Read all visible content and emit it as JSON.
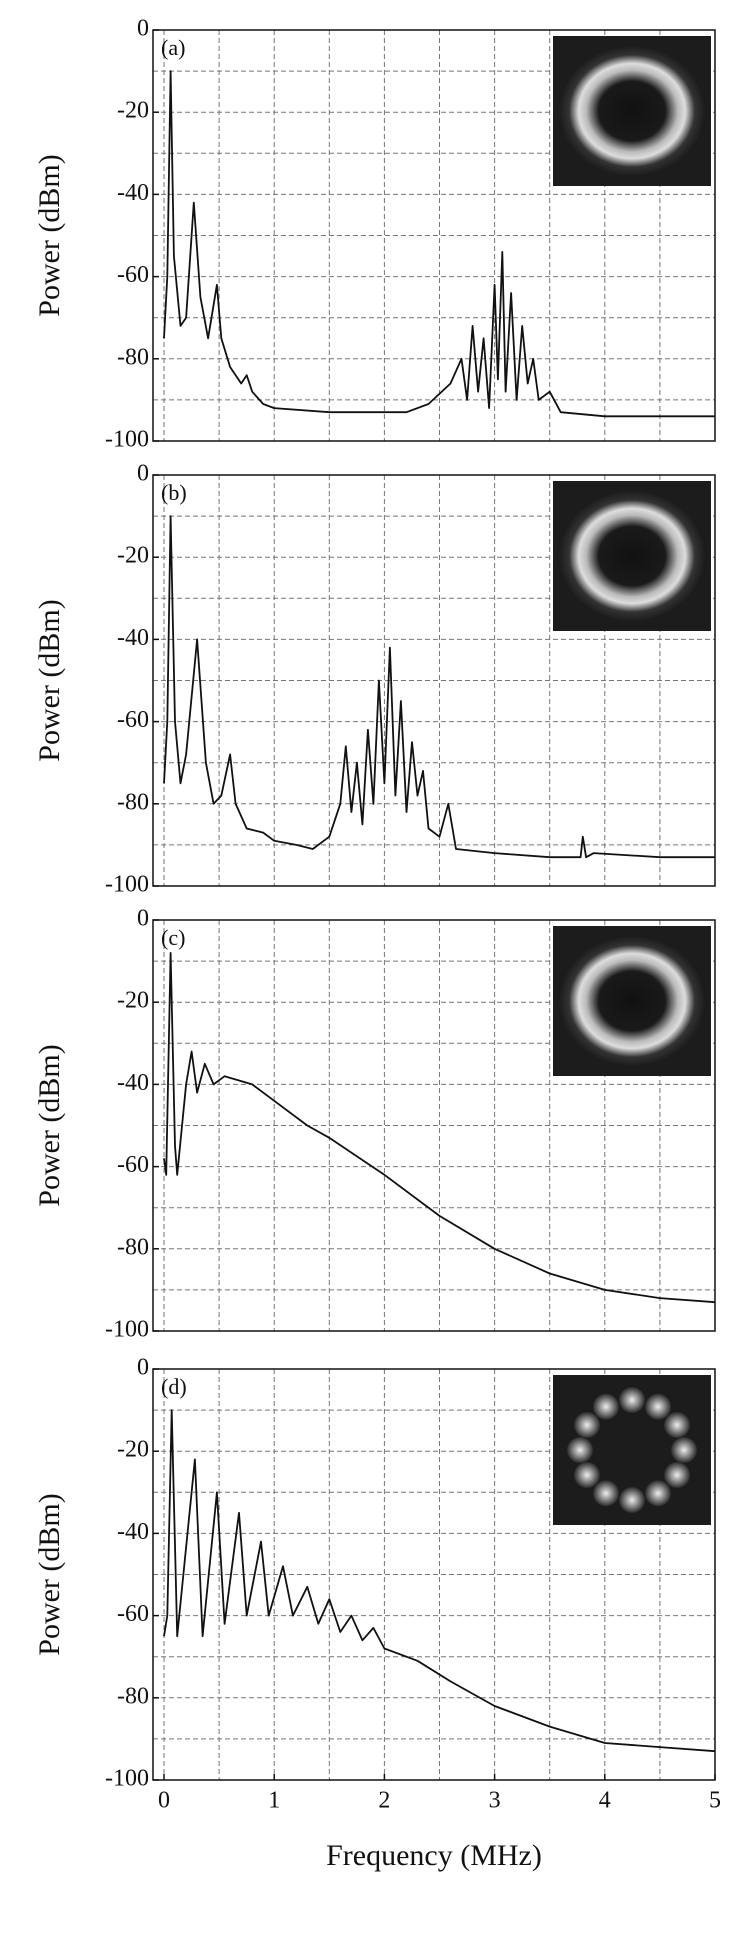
{
  "chart_data": [
    {
      "type": "line",
      "label": "(a)",
      "ylabel": "Power (dBm)",
      "color": "#111111",
      "xlim": [
        -0.1,
        5
      ],
      "ylim": [
        -100,
        0
      ],
      "yticks": [
        -100,
        -80,
        -60,
        -40,
        -20,
        0
      ],
      "grid_x": [
        0,
        0.5,
        1,
        1.5,
        2,
        2.5,
        3,
        3.5,
        4,
        4.5,
        5
      ],
      "grid_y": [
        -90,
        -80,
        -70,
        -60,
        -50,
        -40,
        -30,
        -20,
        -10
      ],
      "x": [
        0,
        0.03,
        0.06,
        0.09,
        0.15,
        0.2,
        0.27,
        0.33,
        0.4,
        0.48,
        0.52,
        0.6,
        0.7,
        0.75,
        0.8,
        0.9,
        1.0,
        1.5,
        2.0,
        2.2,
        2.4,
        2.6,
        2.7,
        2.75,
        2.8,
        2.85,
        2.9,
        2.95,
        3.0,
        3.03,
        3.07,
        3.1,
        3.15,
        3.2,
        3.25,
        3.3,
        3.35,
        3.4,
        3.5,
        3.6,
        4.0,
        4.5,
        5.0
      ],
      "values": [
        -75,
        -60,
        -10,
        -55,
        -72,
        -70,
        -42,
        -65,
        -75,
        -62,
        -75,
        -82,
        -86,
        -84,
        -88,
        -91,
        -92,
        -93,
        -93,
        -93,
        -91,
        -86,
        -80,
        -90,
        -72,
        -88,
        -75,
        -92,
        -62,
        -85,
        -54,
        -88,
        -64,
        -90,
        -72,
        -86,
        -80,
        -90,
        -88,
        -93,
        -94,
        -94,
        -94
      ]
    },
    {
      "type": "line",
      "label": "(b)",
      "ylabel": "Power (dBm)",
      "color": "#111111",
      "xlim": [
        -0.1,
        5
      ],
      "ylim": [
        -100,
        0
      ],
      "yticks": [
        -100,
        -80,
        -60,
        -40,
        -20,
        0
      ],
      "grid_x": [
        0,
        0.5,
        1,
        1.5,
        2,
        2.5,
        3,
        3.5,
        4,
        4.5,
        5
      ],
      "grid_y": [
        -90,
        -80,
        -70,
        -60,
        -50,
        -40,
        -30,
        -20,
        -10
      ],
      "x": [
        0,
        0.03,
        0.06,
        0.1,
        0.15,
        0.2,
        0.3,
        0.38,
        0.45,
        0.52,
        0.6,
        0.65,
        0.75,
        0.9,
        1.0,
        1.2,
        1.35,
        1.5,
        1.6,
        1.65,
        1.7,
        1.75,
        1.8,
        1.85,
        1.9,
        1.95,
        2.0,
        2.05,
        2.1,
        2.15,
        2.2,
        2.25,
        2.3,
        2.35,
        2.4,
        2.5,
        2.58,
        2.65,
        3.0,
        3.5,
        3.78,
        3.8,
        3.83,
        3.9,
        4.5,
        5.0
      ],
      "values": [
        -75,
        -60,
        -10,
        -60,
        -75,
        -68,
        -40,
        -70,
        -80,
        -78,
        -68,
        -80,
        -86,
        -87,
        -89,
        -90,
        -91,
        -88,
        -80,
        -66,
        -82,
        -70,
        -85,
        -62,
        -80,
        -50,
        -75,
        -42,
        -78,
        -55,
        -82,
        -65,
        -78,
        -72,
        -86,
        -88,
        -80,
        -91,
        -92,
        -93,
        -93,
        -88,
        -93,
        -92,
        -93,
        -93
      ]
    },
    {
      "type": "line",
      "label": "(c)",
      "ylabel": "Power (dBm)",
      "color": "#111111",
      "xlim": [
        -0.1,
        5
      ],
      "ylim": [
        -100,
        0
      ],
      "yticks": [
        -100,
        -80,
        -60,
        -40,
        -20,
        0
      ],
      "grid_x": [
        0,
        0.5,
        1,
        1.5,
        2,
        2.5,
        3,
        3.5,
        4,
        4.5,
        5
      ],
      "grid_y": [
        -90,
        -80,
        -70,
        -60,
        -50,
        -40,
        -30,
        -20,
        -10
      ],
      "x": [
        0,
        0.02,
        0.06,
        0.1,
        0.12,
        0.2,
        0.25,
        0.3,
        0.37,
        0.45,
        0.55,
        0.8,
        1.0,
        1.3,
        1.5,
        2.0,
        2.5,
        3.0,
        3.5,
        4.0,
        4.5,
        5.0
      ],
      "values": [
        -58,
        -62,
        -8,
        -55,
        -62,
        -40,
        -32,
        -42,
        -35,
        -40,
        -38,
        -40,
        -44,
        -50,
        -53,
        -62,
        -72,
        -80,
        -86,
        -90,
        -92,
        -93
      ]
    },
    {
      "type": "line",
      "label": "(d)",
      "ylabel": "Power (dBm)",
      "xlabel": "Frequency (MHz)",
      "color": "#111111",
      "xlim": [
        -0.1,
        5
      ],
      "ylim": [
        -100,
        0
      ],
      "yticks": [
        -100,
        -80,
        -60,
        -40,
        -20,
        0
      ],
      "xticks": [
        0,
        1,
        2,
        3,
        4,
        5
      ],
      "grid_x": [
        0,
        0.5,
        1,
        1.5,
        2,
        2.5,
        3,
        3.5,
        4,
        4.5,
        5
      ],
      "grid_y": [
        -90,
        -80,
        -70,
        -60,
        -50,
        -40,
        -30,
        -20,
        -10
      ],
      "x": [
        0,
        0.03,
        0.07,
        0.12,
        0.28,
        0.35,
        0.48,
        0.55,
        0.68,
        0.75,
        0.88,
        0.95,
        1.08,
        1.17,
        1.3,
        1.4,
        1.5,
        1.6,
        1.7,
        1.8,
        1.9,
        2.0,
        2.3,
        2.6,
        3.0,
        3.5,
        4.0,
        4.5,
        5.0
      ],
      "values": [
        -65,
        -60,
        -10,
        -65,
        -22,
        -65,
        -30,
        -62,
        -35,
        -60,
        -42,
        -60,
        -48,
        -60,
        -53,
        -62,
        -56,
        -64,
        -60,
        -66,
        -63,
        -68,
        -71,
        -76,
        -82,
        -87,
        -91,
        -92,
        -93
      ]
    }
  ]
}
